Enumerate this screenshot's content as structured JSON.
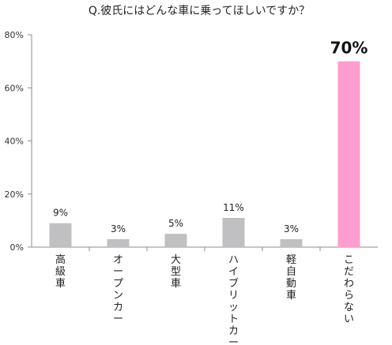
{
  "chart_data": {
    "type": "bar",
    "title": "Q.彼氏にはどんな車に乗ってほしいですか？",
    "categories": [
      "高級車",
      "オープンカー",
      "大型車",
      "ハイブリットカー",
      "軽自動車",
      "こだわらない"
    ],
    "values": [
      9,
      3,
      5,
      11,
      3,
      70
    ],
    "value_labels": [
      "9%",
      "3%",
      "5%",
      "11%",
      "3%",
      "70%"
    ],
    "highlight_index": 5,
    "ylim": [
      0,
      80
    ],
    "yticks": [
      0,
      20,
      40,
      60,
      80
    ],
    "ytick_labels": [
      "0%",
      "20%",
      "40%",
      "60%",
      "80%"
    ],
    "grid": false,
    "colors": {
      "bar": "#c0bfc1",
      "highlight": "#ff9dcf",
      "axis": "#8c8c8c"
    }
  }
}
